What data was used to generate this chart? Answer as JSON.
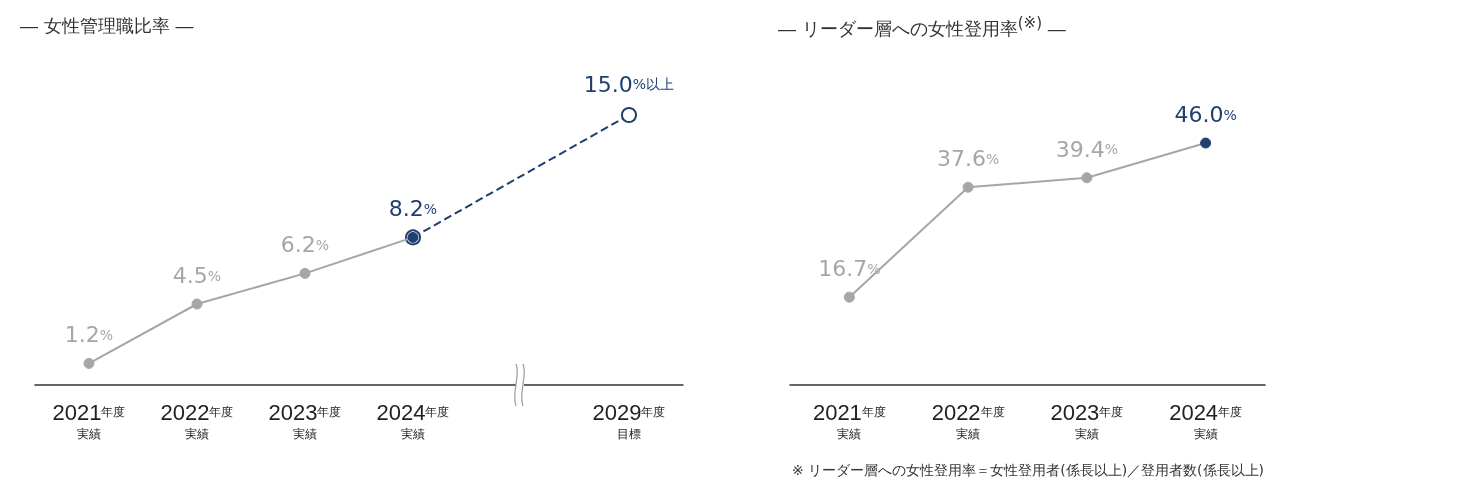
{
  "chart_data": [
    {
      "type": "line",
      "title": "― 女性管理職比率 ―",
      "categories": [
        "2021年度実績",
        "2022年度実績",
        "2023年度実績",
        "2024年度実績",
        null,
        "2029年度目標"
      ],
      "series": [
        {
          "color": "#a6a6a6",
          "colors": [
            "#a6a6a6",
            "#a6a6a6",
            "#a6a6a6",
            "#1f3f6e",
            "#a6a6a6",
            "#a6a6a6"
          ],
          "values": [
            1.2,
            4.5,
            6.2,
            8.2,
            null,
            null
          ],
          "value_labels": [
            "1.2%",
            "4.5%",
            "6.2%",
            "8.2%",
            null,
            null
          ]
        },
        {
          "color": "#1f3f6e",
          "x": [
            "2024年度実績",
            "2029年度目標"
          ],
          "values": [
            8.2,
            15.0
          ],
          "value_labels": [
            null,
            "15.0%以上"
          ],
          "line_style": "dashed"
        }
      ],
      "marker": "circle"
    },
    {
      "type": "line",
      "title": "― リーダー層への女性登用率$^{(※)}$ ―",
      "categories": [
        "2021年度実績",
        "2022年度実績",
        "2023年度実績",
        "2024年度実績"
      ],
      "series": [
        {
          "color": "#a6a6a6",
          "colors": [
            "#a6a6a6",
            "#a6a6a6",
            "#a6a6a6",
            "#1f3f6e"
          ],
          "values": [
            16.7,
            37.6,
            39.4,
            46.0
          ],
          "value_labels": [
            "16.7%",
            "37.6%",
            "39.4%",
            "46.0%"
          ]
        }
      ],
      "marker": "circle",
      "annotations": [
        "※ リーダー層への女性登用率＝女性登用者(係長以上)／登用者数(係長以上)"
      ]
    }
  ]
}
